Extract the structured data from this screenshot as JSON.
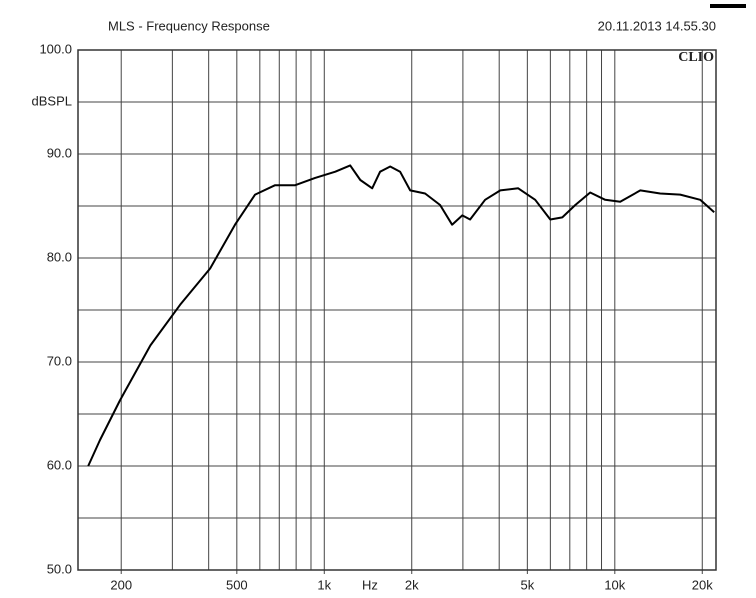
{
  "chart_data": {
    "type": "line",
    "title": "MLS - Frequency Response",
    "timestamp": "20.11.2013 14.55.30",
    "brand": "CLIO",
    "ylabel": "dBSPL",
    "xlabel": "Hz",
    "log_x": true,
    "color": "#000000",
    "xlim": [
      142,
      22300
    ],
    "ylim": [
      50,
      100
    ],
    "xticks": [
      200,
      500,
      {
        "value": 1000,
        "label": "1k"
      },
      {
        "value": 2000,
        "label": "2k"
      },
      {
        "value": 5000,
        "label": "5k"
      },
      {
        "value": 10000,
        "label": "10k"
      },
      {
        "value": 20000,
        "label": "20k"
      }
    ],
    "xgrid": [
      200,
      300,
      400,
      500,
      600,
      700,
      800,
      900,
      1000,
      2000,
      3000,
      4000,
      5000,
      6000,
      7000,
      8000,
      9000,
      10000,
      20000
    ],
    "yticks": [
      {
        "value": 100,
        "label": "100.0"
      },
      {
        "value": 90,
        "label": "90.0"
      },
      {
        "value": 80,
        "label": "80.0"
      },
      {
        "value": 70,
        "label": "70.0"
      },
      {
        "value": 60,
        "label": "60.0"
      },
      {
        "value": 50,
        "label": "50.0"
      }
    ],
    "ygrid_minor": [
      95,
      85,
      75,
      65,
      55
    ],
    "x": [
      154,
      169,
      198,
      252,
      319,
      405,
      493,
      578,
      677,
      794,
      930,
      1091,
      1228,
      1330,
      1462,
      1557,
      1686,
      1824,
      1976,
      2224,
      2505,
      2755,
      2985,
      3177,
      3577,
      4034,
      4652,
      5319,
      5995,
      6598,
      7310,
      8227,
      9270,
      10440,
      12240,
      14330,
      16790,
      19670,
      21980
    ],
    "values": [
      60.0,
      62.5,
      66.3,
      71.6,
      75.5,
      79.0,
      83.2,
      86.1,
      87.0,
      87.0,
      87.7,
      88.3,
      88.9,
      87.5,
      86.7,
      88.3,
      88.8,
      88.3,
      86.5,
      86.2,
      85.1,
      83.2,
      84.1,
      83.7,
      85.6,
      86.5,
      86.7,
      85.6,
      83.7,
      83.9,
      85.1,
      86.3,
      85.6,
      85.4,
      86.5,
      86.2,
      86.1,
      85.6,
      84.4
    ]
  }
}
